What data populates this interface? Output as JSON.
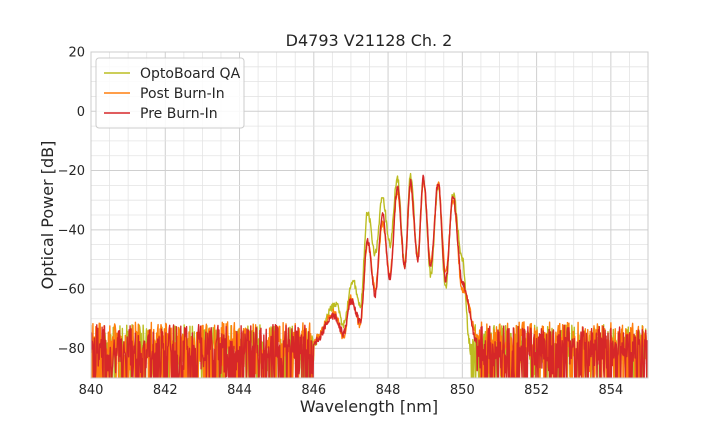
{
  "chart_data": {
    "type": "line",
    "title": "D4793 V21128 Ch. 2",
    "xlabel": "Wavelength [nm]",
    "ylabel": "Optical Power [dB]",
    "xlim": [
      840,
      855
    ],
    "ylim": [
      -90,
      20
    ],
    "xticks": [
      840,
      842,
      844,
      846,
      848,
      850,
      852,
      854
    ],
    "yticks": [
      20,
      0,
      -20,
      -40,
      -60,
      -80
    ],
    "xtick_labels": [
      "840",
      "842",
      "844",
      "846",
      "848",
      "850",
      "852",
      "854"
    ],
    "ytick_labels": [
      "20",
      "0",
      "−20",
      "−40",
      "−60",
      "−80"
    ],
    "grid": true,
    "legend_position": "top-left",
    "series": [
      {
        "name": "OptoBoard QA",
        "color": "#bcbd22",
        "peaks": [
          [
            846.6,
            -65
          ],
          [
            847.05,
            -57
          ],
          [
            847.45,
            -34
          ],
          [
            847.85,
            -29
          ],
          [
            848.25,
            -22.5
          ],
          [
            848.6,
            -21.5
          ],
          [
            848.95,
            -23
          ],
          [
            849.35,
            -25
          ],
          [
            849.75,
            -28
          ]
        ],
        "valleys": [
          [
            846.8,
            -72
          ],
          [
            847.25,
            -66
          ],
          [
            847.65,
            -48
          ],
          [
            848.05,
            -45
          ],
          [
            848.45,
            -52
          ],
          [
            848.8,
            -49
          ],
          [
            849.15,
            -55
          ],
          [
            849.55,
            -60
          ],
          [
            850.0,
            -50
          ]
        ],
        "edges": [
          846.0,
          850.2
        ],
        "noise_floor": -78
      },
      {
        "name": "Post Burn-In",
        "color": "#ff7f0e",
        "peaks": [
          [
            846.55,
            -68
          ],
          [
            847.0,
            -63
          ],
          [
            847.45,
            -44
          ],
          [
            847.85,
            -38
          ],
          [
            848.25,
            -27
          ],
          [
            848.6,
            -25
          ],
          [
            848.95,
            -23
          ],
          [
            849.35,
            -24.5
          ],
          [
            849.75,
            -30
          ]
        ],
        "valleys": [
          [
            846.8,
            -76
          ],
          [
            847.25,
            -72
          ],
          [
            847.65,
            -60
          ],
          [
            848.05,
            -55
          ],
          [
            848.45,
            -52
          ],
          [
            848.8,
            -50
          ],
          [
            849.15,
            -51
          ],
          [
            849.55,
            -54
          ],
          [
            850.0,
            -60
          ]
        ],
        "edges": [
          846.0,
          850.45
        ],
        "noise_floor": -77
      },
      {
        "name": "Pre Burn-In",
        "color": "#d62728",
        "peaks": [
          [
            846.55,
            -69
          ],
          [
            847.0,
            -64
          ],
          [
            847.45,
            -44
          ],
          [
            847.85,
            -35
          ],
          [
            848.25,
            -26
          ],
          [
            848.6,
            -24
          ],
          [
            848.95,
            -22.5
          ],
          [
            849.35,
            -24
          ],
          [
            849.75,
            -29
          ]
        ],
        "valleys": [
          [
            846.8,
            -75
          ],
          [
            847.25,
            -71
          ],
          [
            847.65,
            -62
          ],
          [
            848.05,
            -56
          ],
          [
            848.45,
            -52
          ],
          [
            848.8,
            -50
          ],
          [
            849.15,
            -52
          ],
          [
            849.55,
            -57
          ],
          [
            850.0,
            -58
          ]
        ],
        "edges": [
          846.0,
          850.4
        ],
        "noise_floor": -78
      }
    ]
  }
}
